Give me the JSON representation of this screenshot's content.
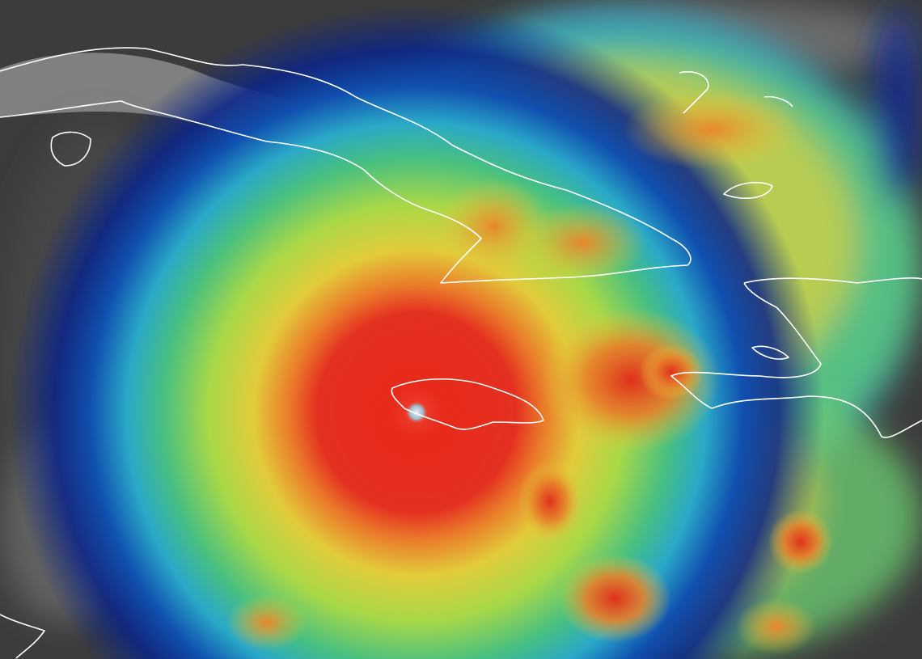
{
  "colors": {
    "background_clouds": "#3c3c3c",
    "land_gray": "#8a8a8a",
    "deep_blue": "#0a2a9a",
    "cyan": "#2bb8c8",
    "green": "#5fc86a",
    "yellow": "#e6d23a",
    "orange": "#e8822a",
    "red": "#e02a1a",
    "eye": "#d8e4ea",
    "coastline": "#ffffff"
  }
}
